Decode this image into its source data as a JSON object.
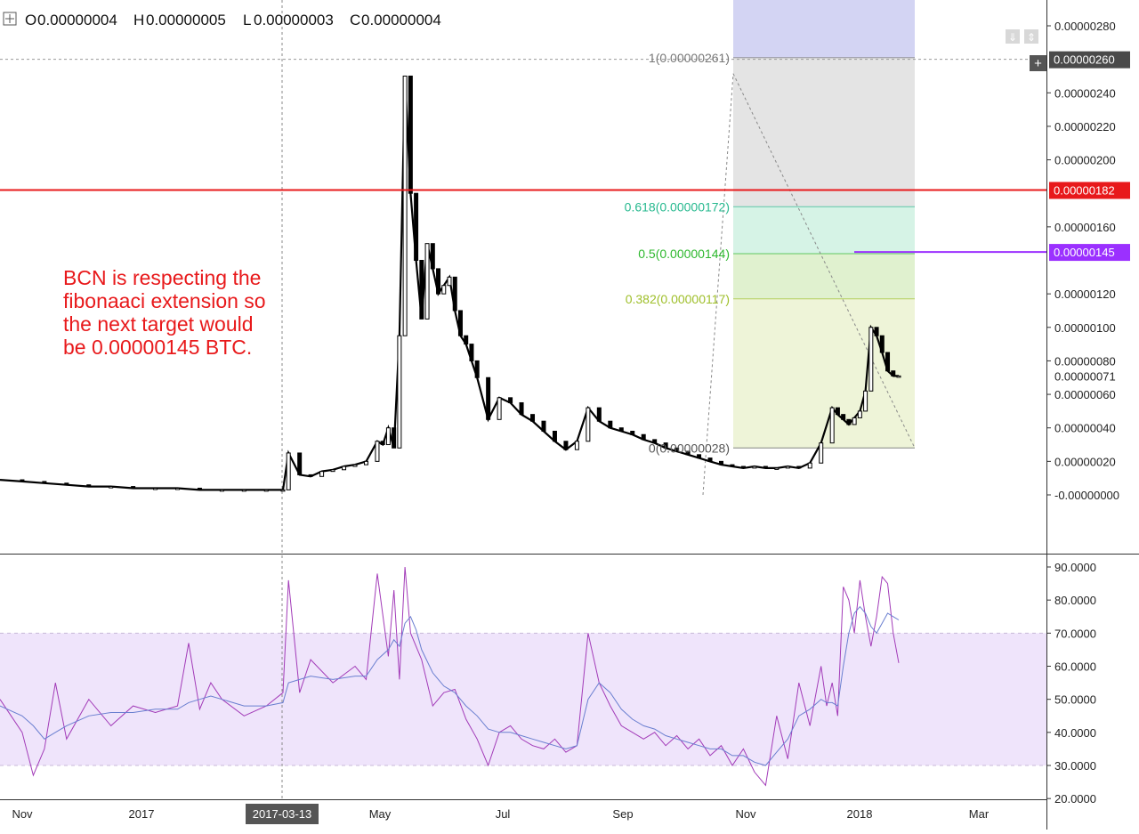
{
  "ohlc": {
    "open_label": "O",
    "open": "0.00000004",
    "high_label": "H",
    "high": "0.00000005",
    "low_label": "L",
    "low": "0.00000003",
    "close_label": "C",
    "close": "0.00000004"
  },
  "colors": {
    "candle": "#000000",
    "red_line": "#e8191b",
    "purple_line": "#9b30ff",
    "rsi_band": "#efe4fb",
    "rsi_line": "#a23bb8",
    "rsi_ma": "#6a7fd0",
    "fib_0": "#eef4d8",
    "fib_382": "#e0f1cf",
    "fib_5": "#d6f3e6",
    "fib_618": "#e4e4e4",
    "fib_1": "#d3d4f3"
  },
  "icons": {
    "crosshair": "crosshair-icon",
    "scroll": [
      "arrow-down-icon",
      "arrow-both-icon"
    ],
    "plus": "plus-icon"
  },
  "annotation": {
    "lines": [
      "BCN is respecting the",
      "fibonaaci extension so",
      "the next target would",
      "be 0.00000145 BTC."
    ]
  },
  "price_axis": {
    "ticks": [
      "0.00000280",
      "0.00000240",
      "0.00000220",
      "0.00000200",
      "0.00000160",
      "0.00000120",
      "0.00000100",
      "0.00000080",
      "0.00000060",
      "0.00000040",
      "0.00000020",
      "-0.00000000"
    ],
    "tick_values": [
      2.8,
      2.4,
      2.2,
      2.0,
      1.6,
      1.2,
      1.0,
      0.8,
      0.6,
      0.4,
      0.2,
      0.0
    ],
    "current_price_label": "0.00000071",
    "badges": [
      {
        "value": 2.6,
        "label": "0.00000260",
        "color": "#4a4a4a"
      },
      {
        "value": 1.82,
        "label": "0.00000182",
        "color": "#e8191b"
      },
      {
        "value": 1.45,
        "label": "0.00000145",
        "color": "#9b30ff"
      }
    ]
  },
  "rsi_axis": {
    "ticks": [
      "90.0000",
      "80.0000",
      "70.0000",
      "60.0000",
      "50.0000",
      "40.0000",
      "30.0000",
      "20.0000"
    ],
    "tick_values": [
      90,
      80,
      70,
      60,
      50,
      40,
      30,
      20
    ]
  },
  "time_axis": {
    "ticks": [
      "Nov",
      "2017",
      "May",
      "Jul",
      "Sep",
      "Nov",
      "2018",
      "Mar"
    ],
    "highlight": "2017-03-13"
  },
  "fib": {
    "levels": [
      {
        "ratio": 0,
        "label": "0(0.00000028)",
        "price": 0.28,
        "color": "#555555"
      },
      {
        "ratio": 0.382,
        "label": "0.382(0.00000117)",
        "price": 1.17,
        "color": "#9fbf2a"
      },
      {
        "ratio": 0.5,
        "label": "0.5(0.00000144)",
        "price": 1.44,
        "color": "#2eb82e"
      },
      {
        "ratio": 0.618,
        "label": "0.618(0.00000172)",
        "price": 1.72,
        "color": "#27b98f"
      },
      {
        "ratio": 1,
        "label": "1(0.00000261)",
        "price": 2.61,
        "color": "#777777"
      }
    ]
  },
  "chart_data": [
    {
      "type": "line",
      "title": "",
      "ylabel": "",
      "ylim": [
        -0.15,
        2.95
      ],
      "x_domain": [
        0,
        100
      ],
      "x": [
        0,
        2,
        4,
        6,
        8,
        10,
        12,
        14,
        16,
        18,
        20,
        22,
        24,
        25.5,
        26,
        27,
        28,
        29,
        30,
        31,
        32,
        33,
        34,
        34.5,
        35,
        35.5,
        36,
        36.5,
        37,
        37.5,
        38,
        38.5,
        39,
        39.5,
        40,
        40.5,
        41,
        41.5,
        42,
        42.5,
        43,
        44,
        45,
        46,
        47,
        48,
        49,
        50,
        51,
        52,
        53,
        54,
        55,
        56,
        57,
        58,
        59,
        60,
        61,
        62,
        63,
        64,
        65,
        66,
        67,
        68,
        69,
        70,
        71,
        72,
        73,
        74,
        75,
        75.5,
        76,
        76.5,
        77,
        77.5,
        78,
        78.5,
        79,
        79.5,
        80,
        80.5,
        81
      ],
      "series": [
        {
          "name": "",
          "values": [
            0.09,
            0.08,
            0.07,
            0.06,
            0.05,
            0.05,
            0.04,
            0.04,
            0.04,
            0.03,
            0.03,
            0.03,
            0.03,
            0.03,
            0.25,
            0.12,
            0.11,
            0.14,
            0.15,
            0.17,
            0.18,
            0.2,
            0.32,
            0.3,
            0.4,
            0.28,
            0.95,
            2.5,
            1.8,
            1.4,
            1.05,
            1.5,
            1.35,
            1.2,
            1.25,
            1.3,
            1.1,
            0.95,
            0.9,
            0.8,
            0.7,
            0.45,
            0.58,
            0.55,
            0.48,
            0.44,
            0.38,
            0.32,
            0.27,
            0.32,
            0.52,
            0.44,
            0.4,
            0.38,
            0.36,
            0.33,
            0.31,
            0.28,
            0.26,
            0.24,
            0.22,
            0.2,
            0.18,
            0.17,
            0.16,
            0.17,
            0.16,
            0.16,
            0.17,
            0.16,
            0.19,
            0.31,
            0.52,
            0.48,
            0.45,
            0.42,
            0.46,
            0.5,
            0.62,
            1.0,
            0.95,
            0.85,
            0.74,
            0.71,
            0.71
          ]
        }
      ]
    },
    {
      "type": "line",
      "title": "",
      "ylabel": "",
      "ylim": [
        20,
        90
      ],
      "x_domain": [
        0,
        100
      ],
      "bands": [
        {
          "from": 30,
          "to": 70
        }
      ],
      "x": [
        0,
        2,
        3,
        4,
        5,
        6,
        8,
        10,
        12,
        14,
        16,
        17,
        18,
        19,
        20,
        22,
        24,
        25.5,
        26,
        27,
        28,
        30,
        32,
        33,
        34,
        35,
        35.5,
        36,
        36.5,
        37,
        37.5,
        38,
        39,
        40,
        41,
        42,
        43,
        44,
        45,
        46,
        47,
        48,
        49,
        50,
        51,
        52,
        53,
        54,
        55,
        56,
        57,
        58,
        59,
        60,
        61,
        62,
        63,
        64,
        65,
        66,
        67,
        68,
        69,
        70,
        71,
        72,
        73,
        74,
        74.5,
        75,
        75.5,
        76,
        76.5,
        77,
        77.5,
        78,
        78.5,
        79,
        79.5,
        80,
        80.5,
        81
      ],
      "series": [
        {
          "name": "",
          "values": [
            50,
            40,
            27,
            35,
            55,
            38,
            50,
            42,
            48,
            46,
            48,
            67,
            47,
            55,
            50,
            45,
            48,
            52,
            86,
            52,
            62,
            55,
            60,
            56,
            88,
            63,
            83,
            56,
            90,
            70,
            66,
            62,
            48,
            52,
            53,
            44,
            38,
            30,
            40,
            42,
            38,
            36,
            35,
            38,
            34,
            36,
            70,
            55,
            48,
            42,
            40,
            38,
            40,
            36,
            39,
            35,
            38,
            33,
            36,
            30,
            35,
            28,
            24,
            45,
            32,
            55,
            42,
            60,
            48,
            55,
            45,
            84,
            80,
            70,
            86,
            75,
            66,
            75,
            87,
            85,
            70,
            61
          ]
        },
        {
          "name": "",
          "values": [
            48,
            45,
            42,
            38,
            40,
            42,
            45,
            46,
            46,
            47,
            47,
            49,
            50,
            51,
            50,
            48,
            48,
            49,
            55,
            56,
            57,
            56,
            57,
            57,
            62,
            65,
            68,
            66,
            73,
            75,
            71,
            65,
            58,
            54,
            52,
            48,
            45,
            41,
            40,
            40,
            39,
            38,
            37,
            36,
            35,
            36,
            50,
            55,
            52,
            47,
            44,
            42,
            41,
            39,
            38,
            37,
            36,
            35,
            35,
            33,
            33,
            31,
            30,
            34,
            38,
            45,
            47,
            50,
            49,
            49,
            48,
            60,
            70,
            76,
            78,
            76,
            72,
            70,
            73,
            76,
            75,
            74
          ]
        }
      ]
    }
  ]
}
